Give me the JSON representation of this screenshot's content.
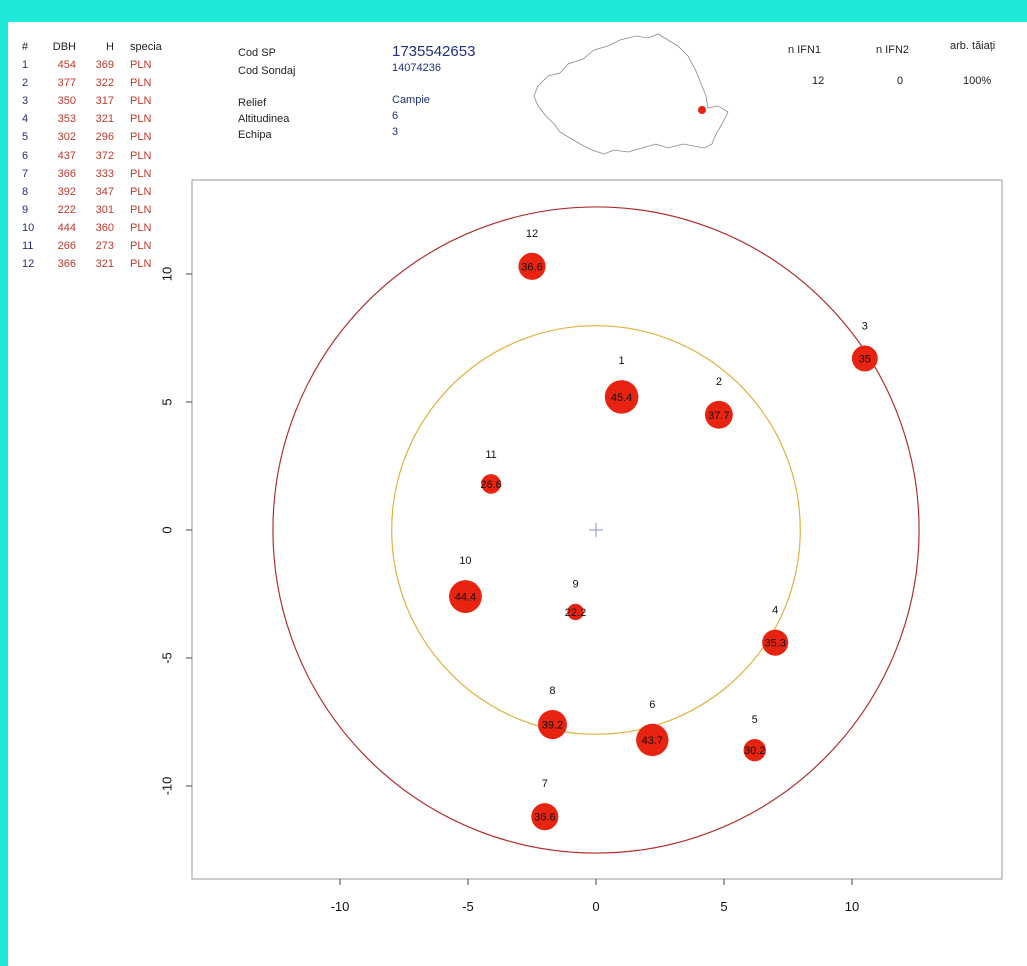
{
  "table": {
    "headers": {
      "num": "#",
      "dbh": "DBH",
      "h": "H",
      "species": "specia"
    },
    "rows": [
      {
        "num": "1",
        "dbh": "454",
        "h": "369",
        "species": "PLN"
      },
      {
        "num": "2",
        "dbh": "377",
        "h": "322",
        "species": "PLN"
      },
      {
        "num": "3",
        "dbh": "350",
        "h": "317",
        "species": "PLN"
      },
      {
        "num": "4",
        "dbh": "353",
        "h": "321",
        "species": "PLN"
      },
      {
        "num": "5",
        "dbh": "302",
        "h": "296",
        "species": "PLN"
      },
      {
        "num": "6",
        "dbh": "437",
        "h": "372",
        "species": "PLN"
      },
      {
        "num": "7",
        "dbh": "366",
        "h": "333",
        "species": "PLN"
      },
      {
        "num": "8",
        "dbh": "392",
        "h": "347",
        "species": "PLN"
      },
      {
        "num": "9",
        "dbh": "222",
        "h": "301",
        "species": "PLN"
      },
      {
        "num": "10",
        "dbh": "444",
        "h": "360",
        "species": "PLN"
      },
      {
        "num": "11",
        "dbh": "266",
        "h": "273",
        "species": "PLN"
      },
      {
        "num": "12",
        "dbh": "366",
        "h": "321",
        "species": "PLN"
      }
    ]
  },
  "info": {
    "cod_sp_label": "Cod SP",
    "cod_sp_value": "1735542653",
    "cod_sondaj_label": "Cod Sondaj",
    "cod_sondaj_value": "14074236",
    "relief_label": "Relief",
    "relief_value": "Campie",
    "altitudinea_label": "Altitudinea",
    "altitudinea_value": "6",
    "echipa_label": "Echipa",
    "echipa_value": "3"
  },
  "ifn": {
    "ifn1_label": "n IFN1",
    "ifn1_value": "12",
    "ifn2_label": "n IFN2",
    "ifn2_value": "0",
    "cut_label": "arb. tăiați",
    "cut_value": "100%"
  },
  "colors": {
    "frame": "#1ee8d8",
    "tree_fill": "#e8230f",
    "outer_circle": "#b03030",
    "inner_circle": "#e0b040",
    "table_blue": "#1f2f7a",
    "table_red": "#c0392b",
    "map_marker": "#e8230f"
  },
  "chart_data": {
    "type": "scatter",
    "xlim": [
      -13.5,
      13.5
    ],
    "ylim": [
      -13.5,
      13.5
    ],
    "x_ticks": [
      -10,
      -5,
      0,
      5,
      10
    ],
    "y_ticks": [
      -10,
      -5,
      0,
      5,
      10
    ],
    "circles": [
      {
        "name": "outer",
        "radius": 12.62
      },
      {
        "name": "inner",
        "radius": 7.98
      }
    ],
    "center_marker": [
      0,
      0
    ],
    "points": [
      {
        "id": "1",
        "x": 1.0,
        "y": 5.2,
        "dbh": "45.4"
      },
      {
        "id": "2",
        "x": 4.8,
        "y": 4.5,
        "dbh": "37.7"
      },
      {
        "id": "3",
        "x": 10.5,
        "y": 6.7,
        "dbh": "35"
      },
      {
        "id": "4",
        "x": 7.0,
        "y": -4.4,
        "dbh": "35.3"
      },
      {
        "id": "5",
        "x": 6.2,
        "y": -8.6,
        "dbh": "30.2"
      },
      {
        "id": "6",
        "x": 2.2,
        "y": -8.2,
        "dbh": "43.7"
      },
      {
        "id": "7",
        "x": -2.0,
        "y": -11.2,
        "dbh": "36.6"
      },
      {
        "id": "8",
        "x": -1.7,
        "y": -7.6,
        "dbh": "39.2"
      },
      {
        "id": "9",
        "x": -0.8,
        "y": -3.2,
        "dbh": "22.2"
      },
      {
        "id": "10",
        "x": -5.1,
        "y": -2.6,
        "dbh": "44.4"
      },
      {
        "id": "11",
        "x": -4.1,
        "y": 1.8,
        "dbh": "26.6"
      },
      {
        "id": "12",
        "x": -2.5,
        "y": 10.3,
        "dbh": "36.6"
      }
    ],
    "map_marker_label": ""
  }
}
